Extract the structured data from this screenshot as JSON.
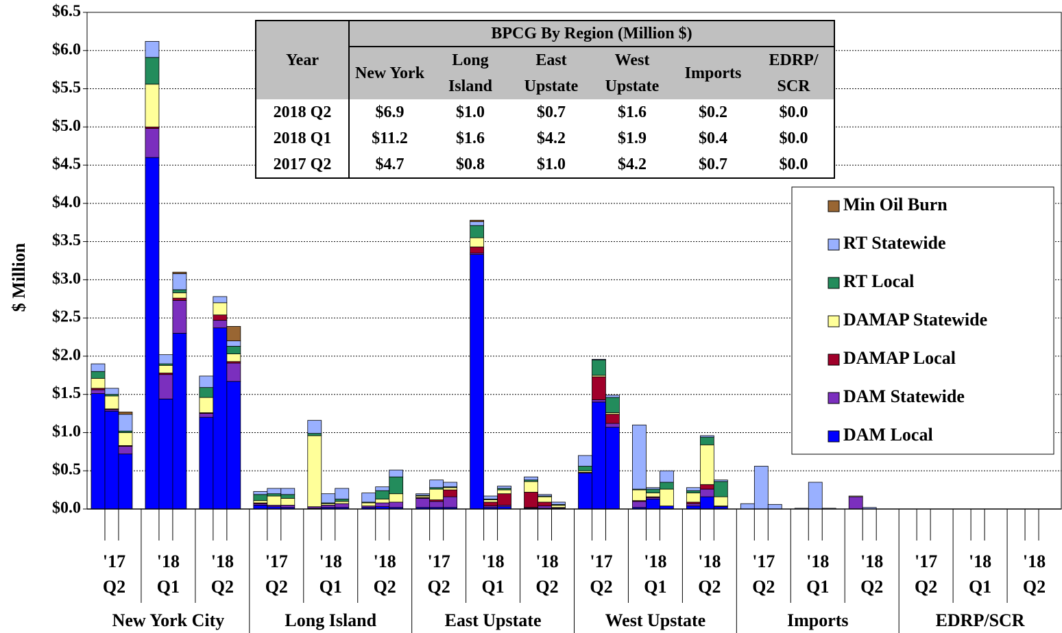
{
  "chart_data": {
    "type": "bar",
    "stacked": true,
    "y_label": "$ Million",
    "ylim": [
      0,
      6.5
    ],
    "yticks": [
      {
        "value": 0,
        "label": "$0.0"
      },
      {
        "value": 0.5,
        "label": "$0.5"
      },
      {
        "value": 1,
        "label": "$1.0"
      },
      {
        "value": 1.5,
        "label": "$1.5"
      },
      {
        "value": 2,
        "label": "$2.0"
      },
      {
        "value": 2.5,
        "label": "$2.5"
      },
      {
        "value": 3,
        "label": "$3.0"
      },
      {
        "value": 3.5,
        "label": "$3.5"
      },
      {
        "value": 4,
        "label": "$4.0"
      },
      {
        "value": 4.5,
        "label": "$4.5"
      },
      {
        "value": 5,
        "label": "$5.0"
      },
      {
        "value": 5.5,
        "label": "$5.5"
      },
      {
        "value": 6,
        "label": "$6.0"
      },
      {
        "value": 6.5,
        "label": "$6.5"
      }
    ],
    "grid": true,
    "legend": "right",
    "x_groups": {
      "regions": [
        "New York City",
        "Long Island",
        "East Upstate",
        "West Upstate",
        "Imports",
        "EDRP/SCR"
      ],
      "periods": [
        {
          "year": "'17",
          "quarter": "Q2"
        },
        {
          "year": "'18",
          "quarter": "Q1"
        },
        {
          "year": "'18",
          "quarter": "Q2"
        }
      ]
    },
    "series": [
      {
        "name": "DAM Local",
        "color": "#0000ff",
        "values": [
          1.51,
          1.28,
          0.72,
          4.6,
          1.44,
          2.3,
          1.2,
          2.37,
          1.67,
          0.05,
          0.03,
          0.02,
          0.01,
          0.02,
          0.02,
          0.02,
          0.03,
          0.02,
          0.02,
          0.02,
          0.02,
          3.33,
          0.02,
          0.03,
          0.01,
          0.01,
          0.01,
          0.47,
          1.4,
          1.07,
          0.02,
          0.13,
          0.04,
          0.04,
          0.16,
          0.03,
          0,
          0,
          0,
          0,
          0,
          0,
          0,
          0,
          0,
          0,
          0,
          0,
          0,
          0,
          0,
          0,
          0,
          0
        ]
      },
      {
        "name": "DAM Statewide",
        "color": "#7b2fbe",
        "values": [
          0.05,
          0.02,
          0.1,
          0.38,
          0.32,
          0.43,
          0.05,
          0.1,
          0.24,
          0.02,
          0.02,
          0.03,
          0.02,
          0.03,
          0.05,
          0.02,
          0.05,
          0.07,
          0.12,
          0.08,
          0.14,
          0.02,
          0.02,
          0.02,
          0.01,
          0.03,
          0.01,
          0,
          0.03,
          0.05,
          0.08,
          0.02,
          0,
          0.03,
          0.1,
          0.01,
          0,
          0,
          0,
          0,
          0,
          0,
          0.16,
          0,
          0,
          0,
          0,
          0,
          0,
          0,
          0,
          0,
          0,
          0
        ]
      },
      {
        "name": "DAMAP Local",
        "color": "#a0002a",
        "values": [
          0.02,
          0.01,
          0.01,
          0.02,
          0.02,
          0.03,
          0.01,
          0.07,
          0.02,
          0.01,
          0,
          0,
          0,
          0,
          0,
          0,
          0,
          0,
          0.01,
          0.02,
          0.09,
          0.08,
          0.05,
          0.15,
          0.2,
          0.05,
          0,
          0.01,
          0.3,
          0.12,
          0.01,
          0.01,
          0,
          0.02,
          0.06,
          0,
          0,
          0,
          0,
          0,
          0,
          0,
          0,
          0,
          0,
          0,
          0,
          0,
          0,
          0,
          0,
          0,
          0,
          0
        ]
      },
      {
        "name": "DAMAP Statewide",
        "color": "#ffff99",
        "values": [
          0.13,
          0.17,
          0.17,
          0.56,
          0.1,
          0.07,
          0.2,
          0.16,
          0.1,
          0.03,
          0.12,
          0.09,
          0.93,
          0.02,
          0.03,
          0.04,
          0.05,
          0.11,
          0.02,
          0.14,
          0.03,
          0.12,
          0.03,
          0.05,
          0.14,
          0.07,
          0.03,
          0.02,
          0.02,
          0.02,
          0.14,
          0.05,
          0.22,
          0.12,
          0.52,
          0.12,
          0,
          0,
          0,
          0,
          0,
          0,
          0.01,
          0,
          0,
          0,
          0,
          0,
          0,
          0,
          0,
          0,
          0,
          0
        ]
      },
      {
        "name": "RT Local",
        "color": "#238c5c",
        "values": [
          0.09,
          0.02,
          0.02,
          0.35,
          0.02,
          0.04,
          0.13,
          0,
          0.1,
          0.08,
          0.03,
          0.05,
          0.03,
          0.01,
          0.03,
          0.01,
          0.11,
          0.22,
          0.01,
          0.02,
          0.01,
          0.16,
          0.01,
          0.02,
          0.02,
          0.01,
          0.01,
          0.06,
          0.2,
          0.2,
          0.01,
          0.05,
          0.09,
          0.03,
          0.1,
          0.2,
          0,
          0,
          0,
          0,
          0,
          0,
          0,
          0,
          0,
          0,
          0,
          0,
          0,
          0,
          0,
          0,
          0,
          0
        ]
      },
      {
        "name": "RT Statewide",
        "color": "#99b0ff",
        "values": [
          0.1,
          0.08,
          0.22,
          0.21,
          0.12,
          0.21,
          0.15,
          0.08,
          0.07,
          0.04,
          0.07,
          0.08,
          0.17,
          0.12,
          0.14,
          0.12,
          0.05,
          0.09,
          0.02,
          0.1,
          0.06,
          0.05,
          0.04,
          0.03,
          0.04,
          0.02,
          0.03,
          0.14,
          0.01,
          0.03,
          0.84,
          0.02,
          0.15,
          0.04,
          0.02,
          0.02,
          0.07,
          0.56,
          0.06,
          0.01,
          0.35,
          0.01,
          0,
          0.02,
          0,
          0,
          0,
          0,
          0,
          0,
          0,
          0,
          0,
          0
        ]
      },
      {
        "name": "Min Oil Burn",
        "color": "#996633",
        "values": [
          0,
          0,
          0.03,
          0,
          0,
          0.02,
          0,
          0,
          0.19,
          0,
          0,
          0,
          0,
          0,
          0,
          0,
          0,
          0,
          0,
          0,
          0,
          0.02,
          0,
          0,
          0,
          0,
          0,
          0,
          0,
          0,
          0,
          0,
          0,
          0,
          0,
          0,
          0,
          0,
          0,
          0,
          0,
          0,
          0,
          0,
          0,
          0,
          0,
          0,
          0,
          0,
          0,
          0,
          0,
          0
        ]
      }
    ],
    "table": {
      "title": "BPCG By Region (Million $)",
      "columns": [
        "Year",
        "New York",
        "Long Island",
        "East Upstate",
        "West Upstate",
        "Imports",
        "EDRP/ SCR"
      ],
      "rows": [
        [
          "2018 Q2",
          "$6.9",
          "$1.0",
          "$0.7",
          "$1.6",
          "$0.2",
          "$0.0"
        ],
        [
          "2018 Q1",
          "$11.2",
          "$1.6",
          "$4.2",
          "$1.9",
          "$0.4",
          "$0.0"
        ],
        [
          "2017 Q2",
          "$4.7",
          "$0.8",
          "$1.0",
          "$4.2",
          "$0.7",
          "$0.0"
        ]
      ]
    }
  }
}
